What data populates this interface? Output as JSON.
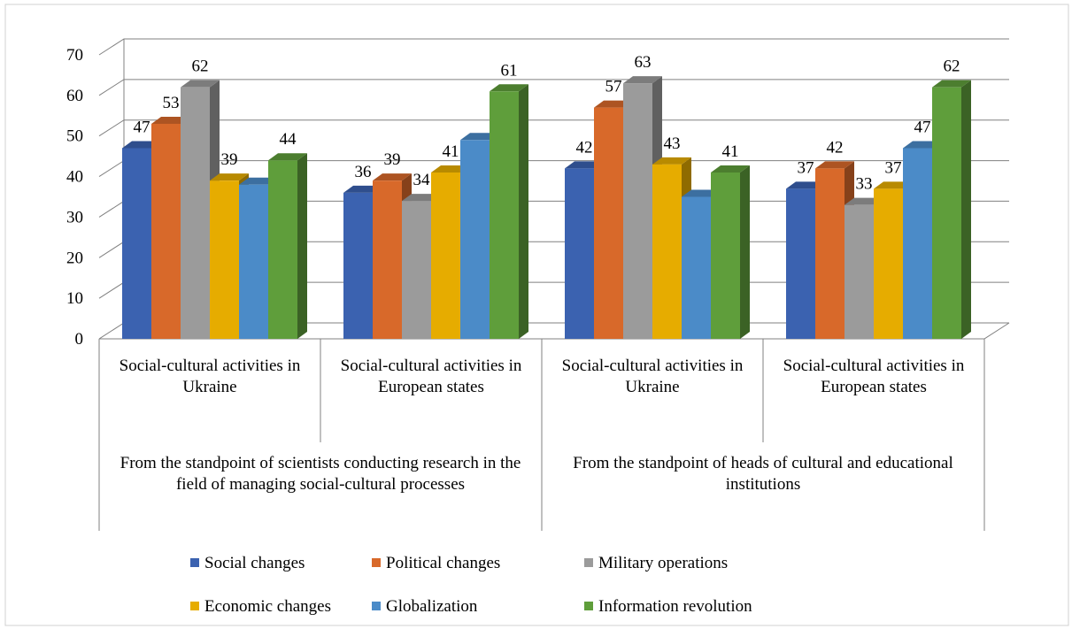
{
  "chart_data": {
    "type": "bar3d",
    "categories": [
      "Social-cultural activities in Ukraine",
      "Social-cultural activities in European states",
      "Social-cultural activities in Ukraine",
      "Social-cultural activities in European states"
    ],
    "groups": [
      "From the standpoint of scientists conducting research in the field of managing social-cultural processes",
      "From the standpoint of heads of cultural and educational institutions"
    ],
    "series": [
      {
        "name": "Social changes",
        "color": "#3b62b0",
        "values": [
          47,
          36,
          42,
          37
        ],
        "value_labels": [
          "47",
          "36",
          "42",
          "37"
        ]
      },
      {
        "name": "Political changes",
        "color": "#d8692a",
        "values": [
          53,
          39,
          57,
          42
        ],
        "value_labels": [
          "53",
          "39",
          "57",
          "42"
        ]
      },
      {
        "name": "Military operations",
        "color": "#9b9b9b",
        "values": [
          62,
          34,
          63,
          33
        ],
        "value_labels": [
          "62",
          "34",
          "63",
          "33"
        ]
      },
      {
        "name": "Economic changes",
        "color": "#e6ac00",
        "values": [
          39,
          41,
          43,
          37
        ],
        "value_labels": [
          "39",
          "41",
          "43",
          "37"
        ]
      },
      {
        "name": "Globalization",
        "color": "#4b8bc8",
        "values": [
          38,
          49,
          35,
          47
        ],
        "value_labels": [
          null,
          null,
          null,
          "47"
        ]
      },
      {
        "name": "Information revolution",
        "color": "#5f9e3b",
        "values": [
          44,
          61,
          41,
          62
        ],
        "value_labels": [
          "44",
          "61",
          "41",
          "62"
        ]
      }
    ],
    "ylim": [
      0,
      70
    ],
    "yticks": [
      0,
      10,
      20,
      30,
      40,
      50,
      60,
      70
    ],
    "grid": true,
    "legend": "bottom"
  }
}
